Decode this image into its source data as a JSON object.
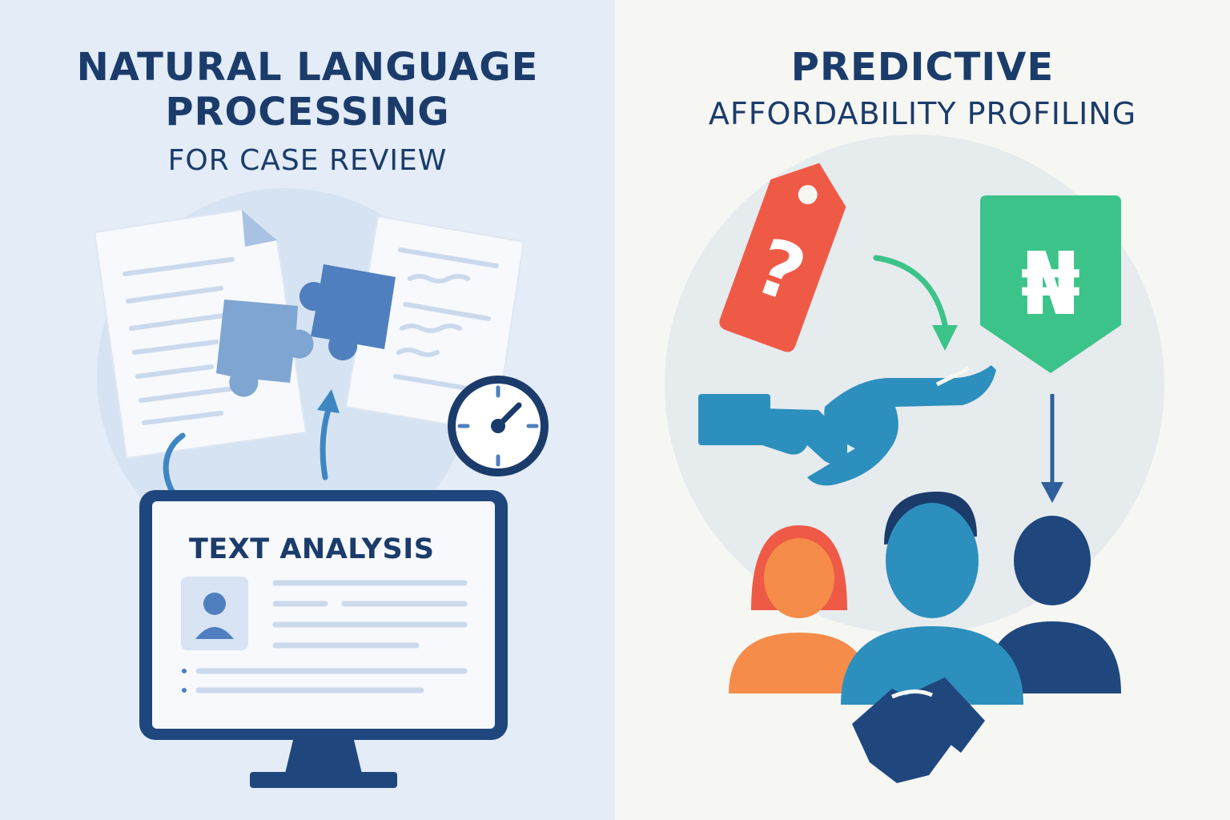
{
  "left": {
    "title_line1": "NATURAL LANGUAGE",
    "title_line2": "PROCESSING",
    "subtitle": "FOR CASE REVIEW",
    "monitor_label": "TEXT ANALYSIS"
  },
  "right": {
    "title_line1": "PREDICTIVE",
    "subtitle": "AFFORDABILITY PROFILING",
    "tag_symbol": "?",
    "currency_symbol": "₦"
  },
  "colors": {
    "left_background": "#e3ecf7",
    "right_background": "#f6f6f3",
    "navy": "#1b3c6b",
    "price_tag_red": "#ef5a47",
    "naira_green": "#3cc389",
    "hand_blue": "#2d8fbd",
    "person_orange": "#f58c49"
  },
  "icons": [
    "document-icon",
    "puzzle-icon",
    "stopwatch-icon",
    "monitor-icon",
    "user-avatar-icon",
    "price-tag-icon",
    "naira-badge-icon",
    "helping-hand-icon",
    "people-group-icon",
    "handshake-icon"
  ]
}
